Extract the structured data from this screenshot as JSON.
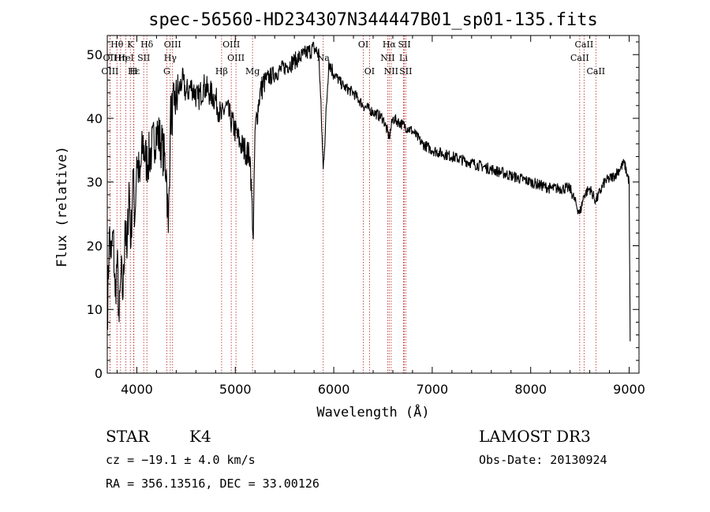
{
  "chart_data": {
    "type": "line",
    "title": "spec-56560-HD234307N344447B01_sp01-135.fits",
    "xlabel": "Wavelength (Å)",
    "ylabel": "Flux (relative)",
    "xlim": [
      3700,
      9100
    ],
    "ylim": [
      0,
      53
    ],
    "x_ticks": [
      4000,
      5000,
      6000,
      7000,
      8000,
      9000
    ],
    "x_tick_labels": [
      "4000",
      "5000",
      "6000",
      "7000",
      "8000",
      "9000"
    ],
    "y_ticks": [
      0,
      10,
      20,
      30,
      40,
      50
    ],
    "y_tick_labels": [
      "0",
      "10",
      "20",
      "30",
      "40",
      "50"
    ],
    "series": [
      {
        "name": "spectrum",
        "x": [
          3700,
          3720,
          3740,
          3760,
          3780,
          3800,
          3820,
          3840,
          3860,
          3880,
          3900,
          3920,
          3940,
          3960,
          3980,
          4000,
          4030,
          4060,
          4100,
          4150,
          4200,
          4250,
          4300,
          4320,
          4340,
          4380,
          4420,
          4460,
          4500,
          4560,
          4620,
          4680,
          4740,
          4800,
          4860,
          4900,
          4950,
          5000,
          5050,
          5100,
          5150,
          5183,
          5200,
          5250,
          5300,
          5400,
          5500,
          5600,
          5700,
          5800,
          5850,
          5893,
          5950,
          6000,
          6100,
          6200,
          6300,
          6400,
          6500,
          6563,
          6600,
          6700,
          6800,
          6900,
          7000,
          7200,
          7400,
          7600,
          7800,
          8000,
          8200,
          8400,
          8498,
          8542,
          8600,
          8662,
          8750,
          8850,
          8950,
          9000,
          9010
        ],
        "y": [
          8,
          22,
          18,
          22,
          12,
          18,
          8,
          16,
          12,
          24,
          18,
          30,
          20,
          32,
          24,
          34,
          30,
          36,
          33,
          35,
          38,
          36,
          32,
          22,
          40,
          42,
          44,
          46,
          44,
          45,
          43,
          45,
          44,
          43,
          40,
          42,
          40,
          38,
          36,
          35,
          34,
          21,
          38,
          44,
          46,
          47,
          48,
          49,
          50,
          51,
          50,
          32,
          49,
          47,
          45,
          44,
          42,
          41,
          40,
          37,
          40,
          39,
          38,
          36,
          35,
          34,
          33,
          32,
          31,
          30,
          29,
          29,
          25,
          28,
          29,
          27,
          30,
          31,
          33,
          30,
          5
        ]
      }
    ],
    "spectral_lines": [
      {
        "label": "Hθ",
        "wavelength": 3798,
        "row": 1
      },
      {
        "label": "K",
        "wavelength": 3934,
        "row": 1
      },
      {
        "label": "Hδ",
        "wavelength": 4102,
        "row": 1
      },
      {
        "label": "OIII",
        "wavelength": 4363,
        "row": 1
      },
      {
        "label": "OIII",
        "wavelength": 4959,
        "row": 1
      },
      {
        "label": "OI",
        "wavelength": 6300,
        "row": 1
      },
      {
        "label": "Hα",
        "wavelength": 6563,
        "row": 1
      },
      {
        "label": "SII",
        "wavelength": 6717,
        "row": 1
      },
      {
        "label": "CaII",
        "wavelength": 8542,
        "row": 1
      },
      {
        "label": "OII",
        "wavelength": 3727,
        "row": 2
      },
      {
        "label": "Hη",
        "wavelength": 3835,
        "row": 2
      },
      {
        "label": "HeI",
        "wavelength": 3889,
        "row": 2
      },
      {
        "label": "SII",
        "wavelength": 4070,
        "row": 2
      },
      {
        "label": "Hγ",
        "wavelength": 4340,
        "row": 2
      },
      {
        "label": "OIII",
        "wavelength": 5007,
        "row": 2
      },
      {
        "label": "NII",
        "wavelength": 6548,
        "row": 2
      },
      {
        "label": "Li",
        "wavelength": 6708,
        "row": 2
      },
      {
        "label": "CaII",
        "wavelength": 8498,
        "row": 2
      },
      {
        "label": "OIII",
        "wavelength": 3727,
        "row": 3
      },
      {
        "label": "Hε",
        "wavelength": 3970,
        "row": 3
      },
      {
        "label": "H",
        "wavelength": 3968,
        "row": 3
      },
      {
        "label": "G",
        "wavelength": 4304,
        "row": 3
      },
      {
        "label": "Hβ",
        "wavelength": 4861,
        "row": 3
      },
      {
        "label": "Mg",
        "wavelength": 5175,
        "row": 3
      },
      {
        "label": "Na",
        "wavelength": 5893,
        "row": 2
      },
      {
        "label": "OI",
        "wavelength": 6363,
        "row": 3
      },
      {
        "label": "NII",
        "wavelength": 6583,
        "row": 3
      },
      {
        "label": "SII",
        "wavelength": 6731,
        "row": 3
      },
      {
        "label": "CaII",
        "wavelength": 8662,
        "row": 3
      }
    ]
  },
  "info": {
    "object_class": "STAR",
    "subclass": "K4",
    "survey": "LAMOST DR3",
    "cz": "cz = −19.1 ± 4.0 km/s",
    "obs_date": "Obs-Date: 20130924",
    "coords": "RA = 356.13516, DEC =  33.00126"
  },
  "colors": {
    "spectrum": "#000000",
    "line_markers": "#b22222",
    "axes": "#000000"
  }
}
